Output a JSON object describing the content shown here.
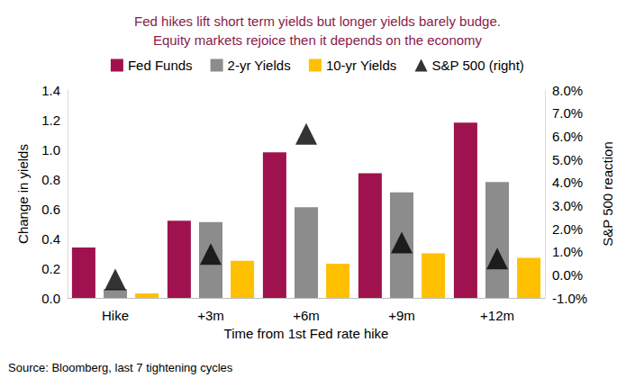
{
  "chart_data": {
    "type": "bar",
    "title": "Fed hikes lift short term yields but longer yields barely budge.\nEquity markets rejoice then it depends on the economy",
    "x_label": "Time from 1st Fed rate hike",
    "y_label": "Change in yields",
    "y2_label": "S&P 500 reaction",
    "source": "Source: Bloomberg, last 7 tightening cycles",
    "categories": [
      "Hike",
      "+3m",
      "+6m",
      "+9m",
      "+12m"
    ],
    "series": [
      {
        "name": "Fed Funds",
        "type": "bar",
        "color": "#a0124e",
        "values": [
          0.34,
          0.52,
          0.98,
          0.84,
          1.18
        ]
      },
      {
        "name": "2-yr Yields",
        "type": "bar",
        "color": "#8c8c8c",
        "values": [
          0.06,
          0.51,
          0.61,
          0.71,
          0.78
        ]
      },
      {
        "name": "10-yr Yields",
        "type": "bar",
        "color": "#ffc000",
        "values": [
          0.03,
          0.25,
          0.23,
          0.3,
          0.27
        ]
      },
      {
        "name": "S&P 500 (right)",
        "type": "scatter",
        "marker": "triangle",
        "color": "#000000",
        "axis": "y2",
        "values": [
          -0.2,
          0.9,
          6.1,
          1.4,
          0.7
        ]
      }
    ],
    "ylim": [
      0,
      1.4
    ],
    "yticks": [
      {
        "value": 0,
        "label": "0.0"
      },
      {
        "value": 0.2,
        "label": "0.2"
      },
      {
        "value": 0.4,
        "label": "0.4"
      },
      {
        "value": 0.6,
        "label": "0.6"
      },
      {
        "value": 0.8,
        "label": "0.8"
      },
      {
        "value": 1.0,
        "label": "1.0"
      },
      {
        "value": 1.2,
        "label": "1.2"
      },
      {
        "value": 1.4,
        "label": "1.4"
      }
    ],
    "y2lim": [
      -1,
      8
    ],
    "y2ticks": [
      {
        "value": -1,
        "label": "-1.0%"
      },
      {
        "value": 0,
        "label": "0.0%"
      },
      {
        "value": 1,
        "label": "1.0%"
      },
      {
        "value": 2,
        "label": "2.0%"
      },
      {
        "value": 3,
        "label": "3.0%"
      },
      {
        "value": 4,
        "label": "4.0%"
      },
      {
        "value": 5,
        "label": "5.0%"
      },
      {
        "value": 6,
        "label": "6.0%"
      },
      {
        "value": 7,
        "label": "7.0%"
      },
      {
        "value": 8,
        "label": "8.0%"
      }
    ],
    "legend": "top",
    "grid": false,
    "data_labels": false
  }
}
